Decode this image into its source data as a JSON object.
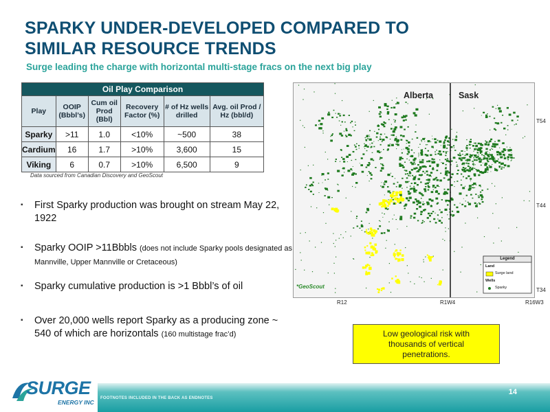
{
  "title": "SPARKY UNDER-DEVELOPED COMPARED TO SIMILAR RESOURCE TRENDS",
  "subtitle": "Surge leading the charge with horizontal multi-stage fracs on the next big play",
  "table": {
    "title": "Oil Play Comparison",
    "columns": [
      "Play",
      "OOIP (Bbbl’s)",
      "Cum oil Prod (Bbl)",
      "Recovery Factor (%)",
      "# of Hz wells drilled",
      "Avg. oil Prod / Hz (bbl/d)"
    ],
    "rows": [
      [
        "Sparky",
        ">11",
        "1.0",
        "<10%",
        "~500",
        "38"
      ],
      [
        "Cardium",
        "16",
        "1.7",
        ">10%",
        "3,600",
        "15"
      ],
      [
        "Viking",
        "6",
        "0.7",
        ">10%",
        "6,500",
        "9"
      ]
    ],
    "source": "Data sourced from Canadian Discovery and GeoScout"
  },
  "bullets": [
    {
      "text": "First Sparky production was brought on stream May 22, 1922",
      "small": ""
    },
    {
      "text": "Sparky OOIP >11Bbbls ",
      "small": "(does not include Sparky pools designated as Mannville, Upper Mannville or Cretaceous)"
    },
    {
      "text": "Sparky cumulative production is >1 Bbbl’s of oil",
      "small": ""
    },
    {
      "text": "Over 20,000 wells report Sparky as a producing zone ~ 540 of which are horizontals ",
      "small": "(160 multistage frac’d)"
    }
  ],
  "map": {
    "province_left": "Alberta",
    "province_right": "Sask",
    "township_labels": [
      "T54",
      "T44",
      "T34"
    ],
    "range_labels": [
      "R12",
      "R1W4",
      "R16W3"
    ],
    "credit": "*GeoScout",
    "legend": {
      "title": "Legend",
      "land_heading": "Land",
      "land_item": "Surge land",
      "wells_heading": "Wells",
      "wells_item": "Sparky"
    },
    "colors": {
      "wells": "#1f7a1f",
      "surge_land": "#ffff00",
      "background": "#f4f4f4"
    }
  },
  "callout": "Low geological risk with thousands of vertical penetrations.",
  "footer": {
    "logo_word": "SURGE",
    "logo_sub": "ENERGY INC",
    "note": "FOOTNOTES INCLUDED IN THE BACK AS ENDNOTES",
    "page": "14"
  }
}
